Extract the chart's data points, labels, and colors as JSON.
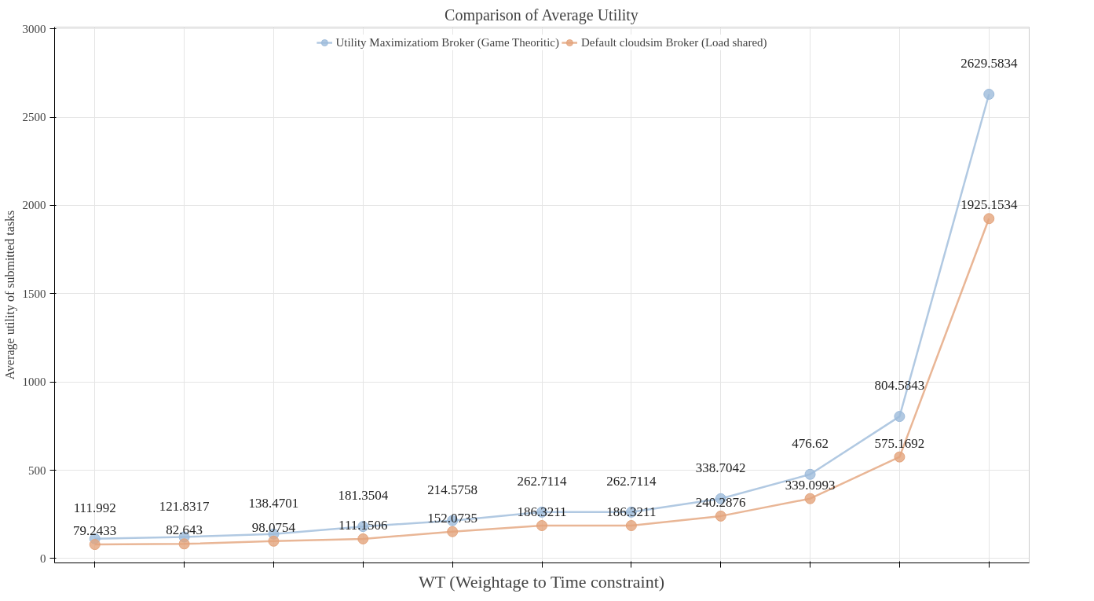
{
  "chart_data": {
    "type": "line",
    "title": "Comparison of Average Utility",
    "xlabel": "WT (Weightage to Time constraint)",
    "ylabel": "Average utility of submitted tasks",
    "categories": [
      null,
      null,
      null,
      null,
      null,
      null,
      null,
      null,
      null,
      null,
      null
    ],
    "series": [
      {
        "name": "Utility Maximizatiom Broker (Game Theoritic)",
        "color": "#9dbbdb",
        "values": [
          111.992,
          121.8317,
          138.4701,
          181.3504,
          214.5758,
          262.7114,
          262.7114,
          338.7042,
          476.62,
          804.5843,
          2629.5834
        ]
      },
      {
        "name": "Default cloudsim Broker (Load shared)",
        "color": "#e4a47c",
        "values": [
          79.2433,
          82.643,
          98.0754,
          111.1506,
          152.0735,
          186.3211,
          186.3211,
          240.2876,
          339.0993,
          575.1692,
          1925.1534
        ]
      }
    ],
    "ylim": [
      -25,
      3010
    ],
    "yticks": [
      0,
      500,
      1000,
      1500,
      2000,
      2500,
      3000
    ],
    "grid": true,
    "legend": "top",
    "marker": "circle",
    "line_style": "solid",
    "data_labels": true
  }
}
